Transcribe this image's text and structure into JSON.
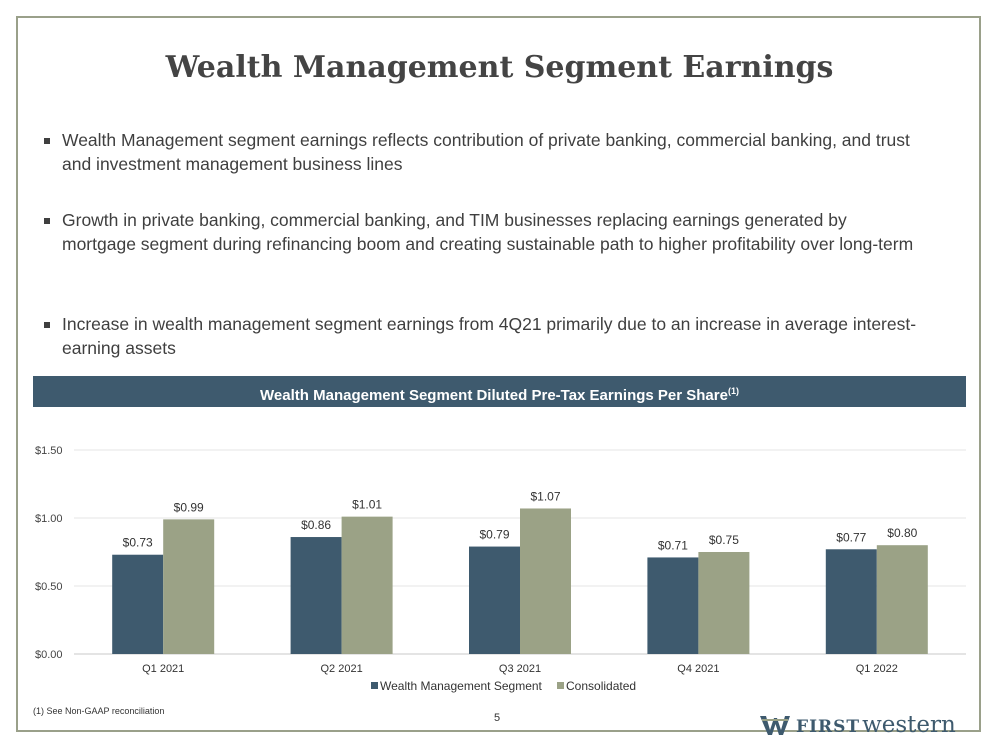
{
  "title": "Wealth Management Segment Earnings",
  "bullets": [
    "Wealth Management segment earnings reflects contribution of private banking, commercial banking, and trust and investment management business lines",
    "Growth in private banking, commercial banking, and TIM businesses replacing earnings generated by mortgage segment during refinancing boom and creating sustainable path to higher profitability over long-term",
    "Increase in wealth management segment earnings from 4Q21 primarily due to an increase in average interest-earning assets"
  ],
  "chart_header": {
    "text": "Wealth Management Segment Diluted Pre-Tax Earnings Per Share",
    "superscript": "(1)"
  },
  "chart_data": {
    "type": "bar",
    "title": "Wealth Management Segment Diluted Pre-Tax Earnings Per Share(1)",
    "categories": [
      "Q1 2021",
      "Q2 2021",
      "Q3 2021",
      "Q4 2021",
      "Q1 2022"
    ],
    "series": [
      {
        "name": "Wealth Management Segment",
        "values": [
          0.73,
          0.86,
          0.79,
          0.71,
          0.77
        ],
        "labels": [
          "$0.73",
          "$0.86",
          "$0.79",
          "$0.71",
          "$0.77"
        ],
        "color": "#3e5a6e"
      },
      {
        "name": "Consolidated",
        "values": [
          0.99,
          1.01,
          1.07,
          0.75,
          0.8
        ],
        "labels": [
          "$0.99",
          "$1.01",
          "$1.07",
          "$0.75",
          "$0.80"
        ],
        "color": "#9ba286"
      }
    ],
    "yticks": [
      0,
      0.5,
      1.0,
      1.5
    ],
    "ytick_labels": [
      "$0.00",
      "$0.50",
      "$1.00",
      "$1.50"
    ],
    "ylim": [
      0,
      1.5
    ],
    "grid": true,
    "legend": "bottom"
  },
  "footnote": "(1) See Non-GAAP reconciliation",
  "page_number": "5",
  "logo": {
    "first": "FIRST",
    "western": "western",
    "color": "#3e5a6e"
  }
}
